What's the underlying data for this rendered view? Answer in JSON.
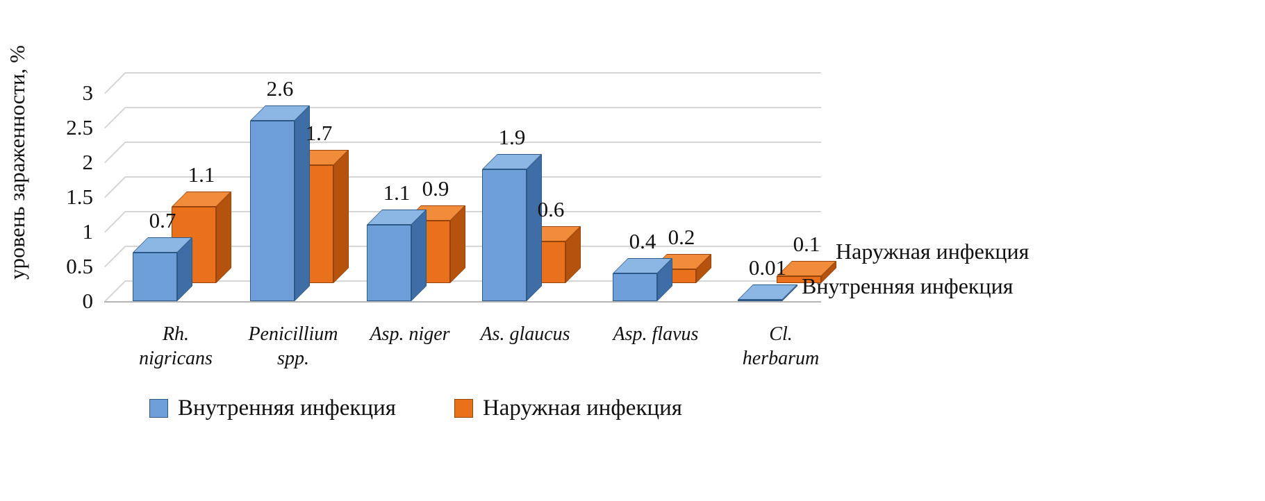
{
  "chart_data": {
    "type": "bar",
    "projection": "3d",
    "title": "",
    "xlabel": "",
    "ylabel": "уровень зараженности, %",
    "ylim": [
      0,
      3
    ],
    "grid": true,
    "legend_position": "bottom",
    "categories": [
      "Rh.\nnigricans",
      "Penicillium\nspp.",
      "Asp. niger",
      "As. glaucus",
      "Asp. flavus",
      "Cl.\nherbarum"
    ],
    "yticks": [
      0,
      0.5,
      1,
      1.5,
      2,
      2.5,
      3
    ],
    "ytick_labels": [
      "0",
      "0.5",
      "1",
      "1.5",
      "2",
      "2.5",
      "3"
    ],
    "series": [
      {
        "name": "Внутренняя инфекция",
        "values": [
          0.7,
          2.6,
          1.1,
          1.9,
          0.4,
          0.01
        ],
        "value_labels": [
          "0.7",
          "2.6",
          "1.1",
          "1.9",
          "0.4",
          "0.01"
        ],
        "color": "#6f9fd8",
        "color_top": "#8cb6e4",
        "color_side": "#3f6ea6",
        "color_edge": "#2d5988"
      },
      {
        "name": "Наружная инфекция",
        "values": [
          1.1,
          1.7,
          0.9,
          0.6,
          0.2,
          0.1
        ],
        "value_labels": [
          "1.1",
          "1.7",
          "0.9",
          "0.6",
          "0.2",
          "0.1"
        ],
        "color": "#e9711c",
        "color_top": "#f18d3a",
        "color_side": "#b5520e",
        "color_edge": "#97440b"
      }
    ],
    "right_labels": [
      "Наружная инфекция",
      "Внутренняя инфекция"
    ],
    "legend": [
      "Внутренняя инфекция",
      "Наружная инфекция"
    ],
    "gridline_color": "#d6d6d6",
    "axis_line_color": "#b5b5b5"
  }
}
